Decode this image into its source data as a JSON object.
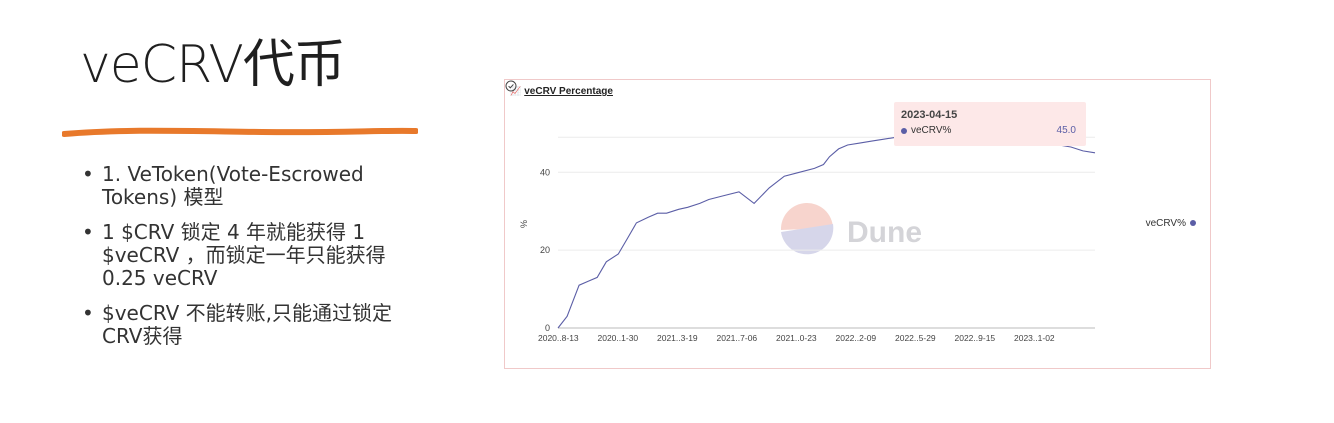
{
  "slide": {
    "title": "veCRV代币",
    "bullets": [
      "1. VeToken(Vote-Escrowed Tokens) 模型",
      "1 $CRV 锁定 4 年就能获得 1 $veCRV ，而锁定一年只能获得 0.25 veCRV",
      "$veCRV 不能转账,只能通过锁定CRV获得"
    ],
    "accent_color": "#e8792b"
  },
  "chart_data": {
    "type": "line",
    "title": "veCRV Percentage",
    "ylabel": "%",
    "xlabel": "",
    "ylim": [
      0,
      56
    ],
    "yticks": [
      0,
      20,
      40
    ],
    "xtick_labels": [
      "2020..8-13",
      "2020..1-30",
      "2021..3-19",
      "2021..7-06",
      "2021..0-23",
      "2022..2-09",
      "2022..5-29",
      "2022..9-15",
      "2023..1-02"
    ],
    "grid": true,
    "legend": "right",
    "watermark": "Dune",
    "series": [
      {
        "name": "veCRV%",
        "color": "#5b5ea6",
        "x": [
          0,
          0.3,
          0.7,
          1,
          1.3,
          1.6,
          2,
          2.3,
          2.6,
          3,
          3.3,
          3.6,
          4,
          4.3,
          4.7,
          5,
          5.5,
          6,
          6.5,
          7,
          7.5,
          8,
          8.5,
          8.8,
          9,
          9.3,
          9.6,
          10,
          10.4,
          10.8,
          11.2,
          11.6,
          12,
          12.4,
          12.8,
          13.2,
          13.6,
          14,
          14.4,
          14.8,
          15,
          15.4,
          15.8,
          16.2,
          16.6,
          17,
          17.4,
          17.8
        ],
        "values": [
          0,
          3,
          11,
          12,
          13,
          17,
          19,
          23,
          27,
          28.5,
          29.5,
          29.5,
          30.5,
          31,
          32,
          33,
          34,
          35,
          32,
          36,
          39,
          40,
          41,
          42,
          44,
          46,
          47,
          47.5,
          48,
          48.5,
          49,
          49.5,
          50,
          50,
          49.5,
          50,
          49,
          49.5,
          50.5,
          49.5,
          50,
          49.5,
          49,
          48,
          47,
          46.5,
          45.5,
          45
        ]
      }
    ]
  },
  "tooltip": {
    "date": "2023-04-15",
    "series": "veCRV%",
    "value": "45.0"
  },
  "icons": {
    "title_icon": "chart-icon",
    "footer_icon": "check-circle-icon"
  }
}
